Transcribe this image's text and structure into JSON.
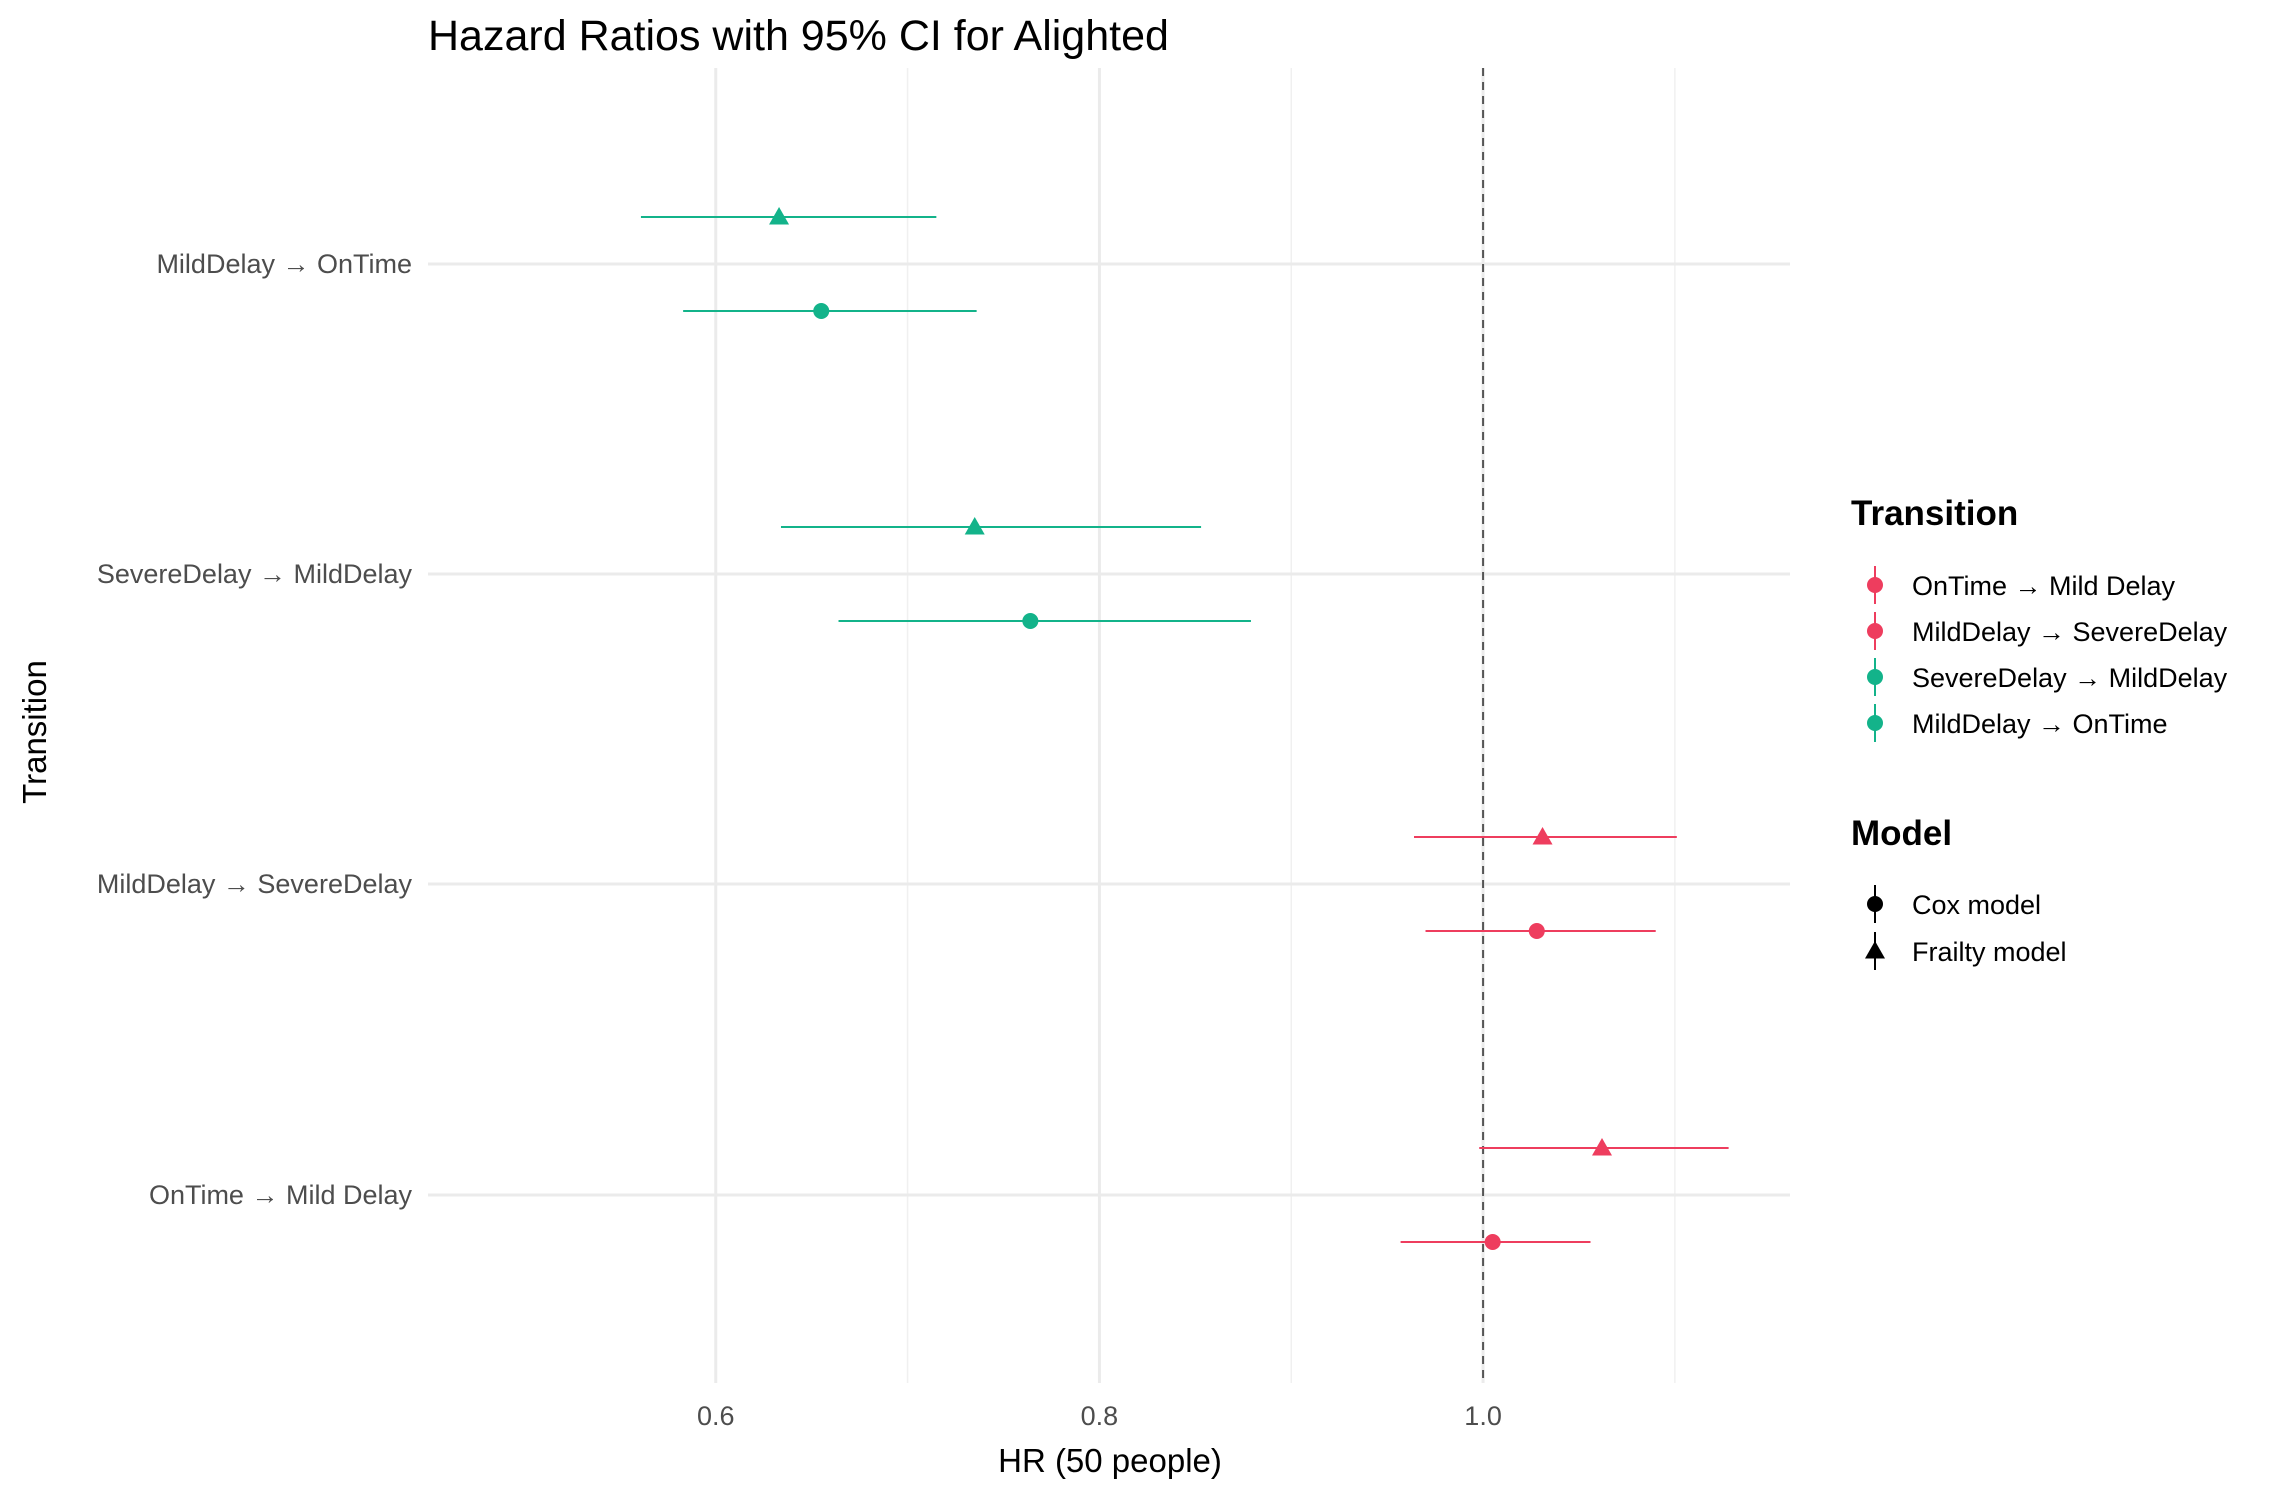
{
  "chart_data": {
    "type": "forest",
    "title": "Hazard Ratios with 95% CI for Alighted",
    "xlabel": "HR (50 people)",
    "ylabel": "Transition",
    "xlim": [
      0.45,
      1.16
    ],
    "x_ticks": [
      "0.6",
      "0.8",
      "1.0"
    ],
    "x_tick_values": [
      0.6,
      0.8,
      1.0
    ],
    "reference_line": 1.0,
    "grid": true,
    "categories": [
      "OnTime → Mild Delay",
      "MildDelay → SevereDelay",
      "SevereDelay → MildDelay",
      "MildDelay → OnTime"
    ],
    "colors": {
      "OnTime → Mild Delay": "#ee3d5e",
      "MildDelay → SevereDelay": "#ee3d5e",
      "SevereDelay → MildDelay": "#13b38a",
      "MildDelay → OnTime": "#13b38a"
    },
    "series": [
      {
        "name": "Cox model",
        "shape": "circle",
        "points": [
          {
            "category": "OnTime → Mild Delay",
            "hr": 1.005,
            "lower": 0.957,
            "upper": 1.056
          },
          {
            "category": "MildDelay → SevereDelay",
            "hr": 1.028,
            "lower": 0.97,
            "upper": 1.09
          },
          {
            "category": "SevereDelay → MildDelay",
            "hr": 0.764,
            "lower": 0.664,
            "upper": 0.879
          },
          {
            "category": "MildDelay → OnTime",
            "hr": 0.655,
            "lower": 0.583,
            "upper": 0.736
          }
        ]
      },
      {
        "name": "Frailty model",
        "shape": "triangle",
        "points": [
          {
            "category": "OnTime → Mild Delay",
            "hr": 1.062,
            "lower": 0.998,
            "upper": 1.128
          },
          {
            "category": "MildDelay → SevereDelay",
            "hr": 1.031,
            "lower": 0.964,
            "upper": 1.101
          },
          {
            "category": "SevereDelay → MildDelay",
            "hr": 0.735,
            "lower": 0.634,
            "upper": 0.853
          },
          {
            "category": "MildDelay → OnTime",
            "hr": 0.633,
            "lower": 0.561,
            "upper": 0.715
          }
        ]
      }
    ],
    "legend": {
      "placement": "right",
      "transition_title": "Transition",
      "transition_items": [
        "OnTime → Mild Delay",
        "MildDelay → SevereDelay",
        "SevereDelay → MildDelay",
        "MildDelay → OnTime"
      ],
      "model_title": "Model",
      "model_items": [
        "Cox model",
        "Frailty model"
      ]
    }
  }
}
